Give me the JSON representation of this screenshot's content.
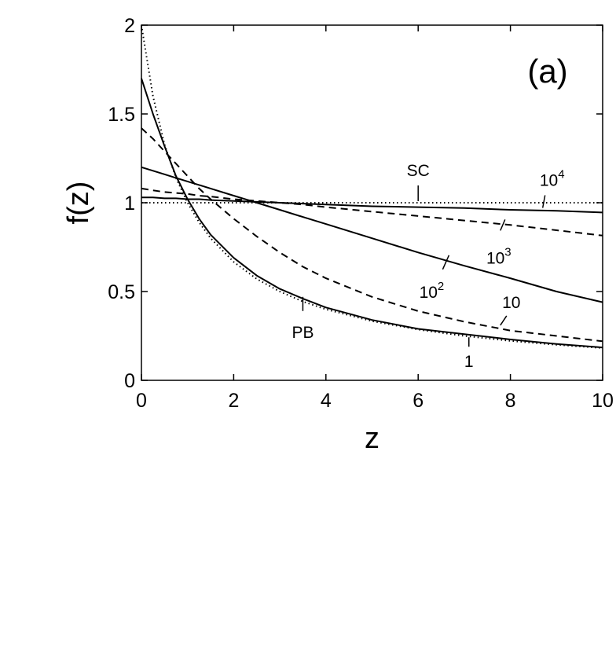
{
  "chart_data": {
    "type": "line",
    "panel_label": "(a)",
    "xlabel": "z",
    "ylabel": "f(z)",
    "xlim": [
      0,
      10
    ],
    "ylim": [
      0,
      2
    ],
    "xticks": [
      "0",
      "2",
      "4",
      "6",
      "8",
      "10"
    ],
    "yticks": [
      "0",
      "0.5",
      "1",
      "1.5",
      "2"
    ],
    "grid": false,
    "x": [
      0,
      0.25,
      0.5,
      0.75,
      1,
      1.25,
      1.5,
      2,
      2.5,
      3,
      3.5,
      4,
      5,
      6,
      7,
      8,
      9,
      10
    ],
    "series": [
      {
        "name": "PB",
        "style": "dotted",
        "values": [
          2.0,
          1.6,
          1.33,
          1.14,
          1.0,
          0.89,
          0.8,
          0.667,
          0.571,
          0.5,
          0.444,
          0.4,
          0.333,
          0.286,
          0.25,
          0.222,
          0.2,
          0.182
        ]
      },
      {
        "name": "SC",
        "style": "dotted",
        "values": [
          1.0,
          1.0,
          1.0,
          1.0,
          1.0,
          1.0,
          1.0,
          1.0,
          1.0,
          1.0,
          1.0,
          1.0,
          1.0,
          1.0,
          1.0,
          1.0,
          1.0,
          1.0
        ]
      },
      {
        "name": "1",
        "style": "solid",
        "values": [
          1.7,
          1.5,
          1.32,
          1.15,
          1.02,
          0.91,
          0.82,
          0.69,
          0.59,
          0.515,
          0.46,
          0.41,
          0.34,
          0.29,
          0.26,
          0.23,
          0.205,
          0.185
        ]
      },
      {
        "name": "10",
        "style": "dashed",
        "values": [
          1.42,
          1.36,
          1.29,
          1.22,
          1.15,
          1.08,
          1.02,
          0.91,
          0.81,
          0.72,
          0.64,
          0.575,
          0.47,
          0.39,
          0.33,
          0.28,
          0.25,
          0.22
        ]
      },
      {
        "name": "10^2",
        "style": "solid",
        "values": [
          1.2,
          1.18,
          1.16,
          1.14,
          1.12,
          1.1,
          1.08,
          1.04,
          1.0,
          0.96,
          0.92,
          0.88,
          0.8,
          0.72,
          0.645,
          0.575,
          0.5,
          0.44
        ]
      },
      {
        "name": "10^3",
        "style": "dashed",
        "values": [
          1.08,
          1.07,
          1.06,
          1.055,
          1.05,
          1.04,
          1.035,
          1.02,
          1.01,
          1.0,
          0.99,
          0.975,
          0.95,
          0.925,
          0.9,
          0.875,
          0.845,
          0.815
        ]
      },
      {
        "name": "10^4",
        "style": "solid",
        "values": [
          1.03,
          1.03,
          1.025,
          1.025,
          1.02,
          1.02,
          1.015,
          1.01,
          1.005,
          1.0,
          0.995,
          0.99,
          0.98,
          0.975,
          0.97,
          0.96,
          0.955,
          0.945
        ]
      }
    ],
    "annotations": [
      {
        "text": "PB",
        "at": [
          3.5,
          0.47
        ]
      },
      {
        "text": "SC",
        "at": [
          6.0,
          1.0
        ]
      },
      {
        "text": "1",
        "at": [
          7.1,
          0.26
        ]
      },
      {
        "text": "10",
        "at": [
          7.85,
          0.31
        ]
      },
      {
        "text": "10",
        "sup": "2",
        "at": [
          6.6,
          0.66
        ]
      },
      {
        "text": "10",
        "sup": "3",
        "at": [
          7.85,
          0.87
        ]
      },
      {
        "text": "10",
        "sup": "4",
        "at": [
          8.7,
          0.98
        ]
      }
    ]
  }
}
